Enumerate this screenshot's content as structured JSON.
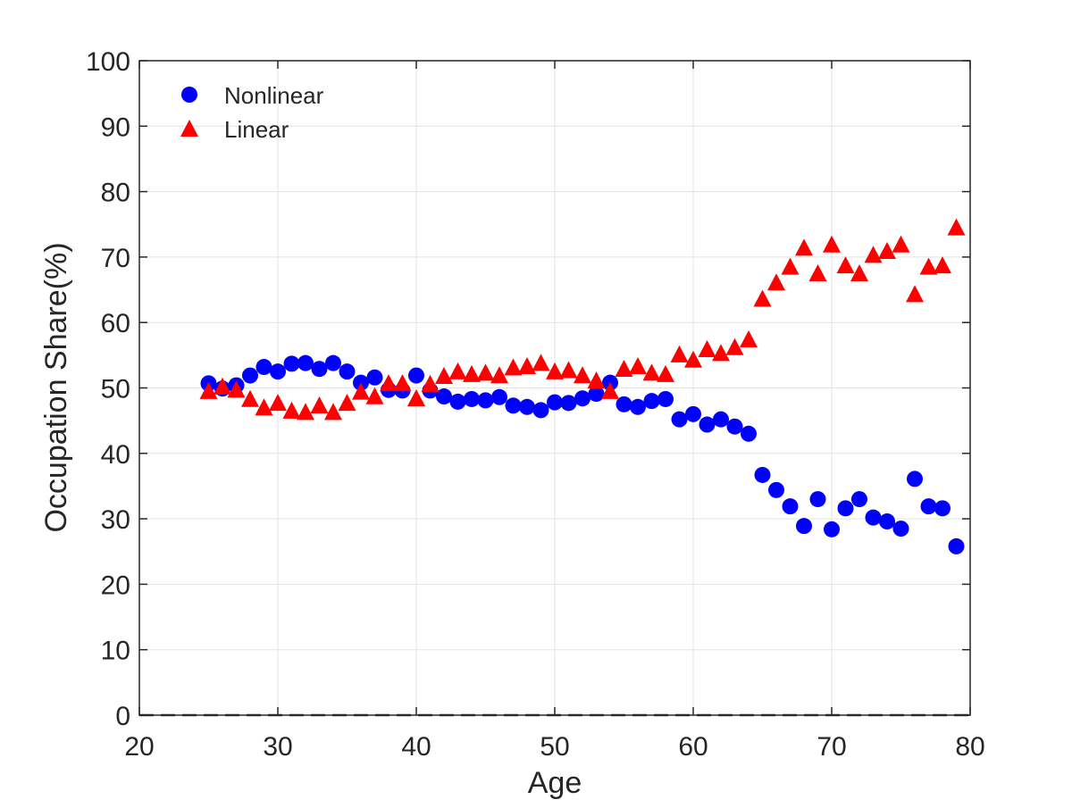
{
  "chart_data": {
    "type": "scatter",
    "title": "",
    "xlabel": "Age",
    "ylabel": "Occupation Share(%)",
    "xlim": [
      20,
      80
    ],
    "ylim": [
      0,
      100
    ],
    "xticks": [
      20,
      30,
      40,
      50,
      60,
      70,
      80
    ],
    "yticks": [
      0,
      10,
      20,
      30,
      40,
      50,
      60,
      70,
      80,
      90,
      100
    ],
    "x_tick_labels": [
      "20",
      "30",
      "40",
      "50",
      "60",
      "70",
      "80"
    ],
    "y_tick_labels": [
      "0",
      "10",
      "20",
      "30",
      "40",
      "50",
      "60",
      "70",
      "80",
      "90",
      "100"
    ],
    "grid": true,
    "legend_position": "top-left",
    "reference_line": {
      "y": 0,
      "style": "dashed",
      "color": "#333333"
    },
    "x": [
      25,
      26,
      27,
      28,
      29,
      30,
      31,
      32,
      33,
      34,
      35,
      36,
      37,
      38,
      39,
      40,
      41,
      42,
      43,
      44,
      45,
      46,
      47,
      48,
      49,
      50,
      51,
      52,
      53,
      54,
      55,
      56,
      57,
      58,
      59,
      60,
      61,
      62,
      63,
      64,
      65,
      66,
      67,
      68,
      69,
      70,
      71,
      72,
      73,
      74,
      75,
      76,
      77,
      78,
      79
    ],
    "series": [
      {
        "name": "Nonlinear",
        "marker": "circle",
        "color": "#0000ff",
        "values": [
          50.7,
          49.9,
          50.4,
          51.9,
          53.2,
          52.5,
          53.7,
          53.8,
          52.9,
          53.8,
          52.5,
          50.8,
          51.6,
          49.7,
          49.6,
          51.9,
          49.6,
          48.7,
          47.9,
          48.3,
          48.1,
          48.6,
          47.3,
          47.1,
          46.6,
          47.8,
          47.7,
          48.4,
          49.1,
          50.8,
          47.5,
          47.1,
          48.0,
          48.3,
          45.2,
          46.0,
          44.4,
          45.2,
          44.1,
          43.0,
          36.7,
          34.4,
          31.9,
          28.9,
          33.0,
          28.4,
          31.6,
          33.0,
          30.2,
          29.6,
          28.5,
          36.1,
          31.9,
          31.6,
          25.8
        ]
      },
      {
        "name": "Linear",
        "marker": "triangle",
        "color": "#ff0000",
        "values": [
          49.4,
          50.1,
          49.6,
          48.2,
          46.9,
          47.6,
          46.4,
          46.2,
          47.2,
          46.2,
          47.6,
          49.3,
          48.6,
          50.6,
          50.6,
          48.3,
          50.5,
          51.7,
          52.4,
          52.0,
          52.2,
          51.8,
          53.0,
          53.2,
          53.7,
          52.4,
          52.6,
          51.8,
          51.0,
          49.4,
          52.8,
          53.2,
          52.2,
          52.0,
          55.0,
          54.2,
          55.8,
          55.2,
          56.1,
          57.3,
          63.5,
          66.0,
          68.4,
          71.3,
          67.4,
          71.8,
          68.6,
          67.4,
          70.2,
          70.8,
          71.8,
          64.2,
          68.4,
          68.6,
          74.4
        ]
      }
    ]
  }
}
